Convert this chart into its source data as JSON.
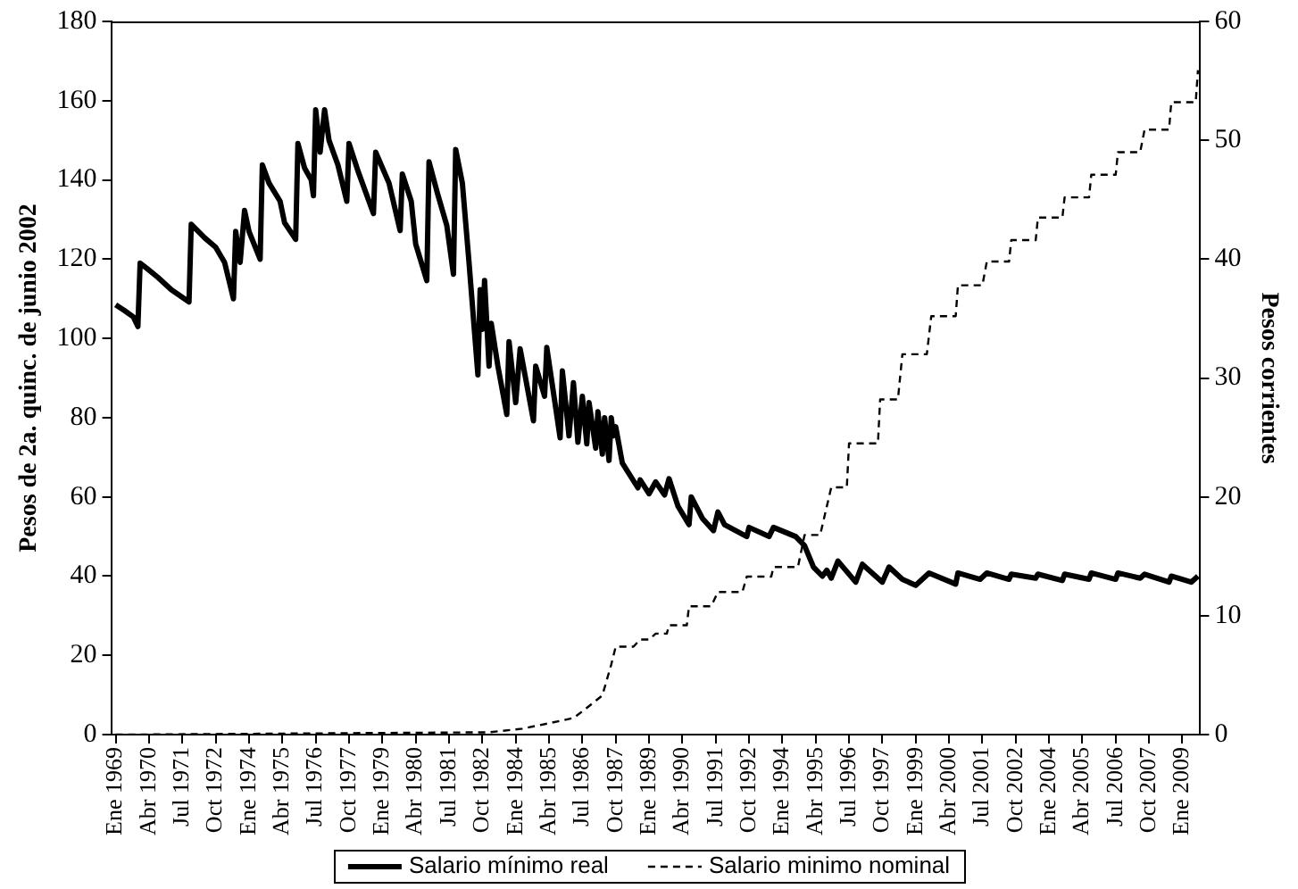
{
  "chart_data": {
    "type": "line",
    "ylabel": "Pesos de 2a. quinc. de junio 2002",
    "y2label": "Pesos corrientes",
    "legend": "bottom",
    "grid": false,
    "marker": "none",
    "xlim": [
      "1968-11",
      "2009-09"
    ],
    "xticks": [
      {
        "value": "1969-01",
        "label": "Ene 1969"
      },
      {
        "value": "1970-04",
        "label": "Abr 1970"
      },
      {
        "value": "1971-07",
        "label": "Jul 1971"
      },
      {
        "value": "1972-10",
        "label": "Oct 1972"
      },
      {
        "value": "1974-01",
        "label": "Ene 1974"
      },
      {
        "value": "1975-04",
        "label": "Abr 1975"
      },
      {
        "value": "1976-07",
        "label": "Jul 1976"
      },
      {
        "value": "1977-10",
        "label": "Oct 1977"
      },
      {
        "value": "1979-01",
        "label": "Ene 1979"
      },
      {
        "value": "1980-04",
        "label": "Abr 1980"
      },
      {
        "value": "1981-07",
        "label": "Jul 1981"
      },
      {
        "value": "1982-10",
        "label": "Oct 1982"
      },
      {
        "value": "1984-01",
        "label": "Ene 1984"
      },
      {
        "value": "1985-04",
        "label": "Abr 1985"
      },
      {
        "value": "1986-07",
        "label": "Jul 1986"
      },
      {
        "value": "1987-10",
        "label": "Oct 1987"
      },
      {
        "value": "1989-01",
        "label": "Ene 1989"
      },
      {
        "value": "1990-04",
        "label": "Abr 1990"
      },
      {
        "value": "1991-07",
        "label": "Jul 1991"
      },
      {
        "value": "1992-10",
        "label": "Oct 1992"
      },
      {
        "value": "1994-01",
        "label": "Ene 1994"
      },
      {
        "value": "1995-04",
        "label": "Abr 1995"
      },
      {
        "value": "1996-07",
        "label": "Jul 1996"
      },
      {
        "value": "1997-10",
        "label": "Oct 1997"
      },
      {
        "value": "1999-01",
        "label": "Ene 1999"
      },
      {
        "value": "2000-04",
        "label": "Abr 2000"
      },
      {
        "value": "2001-07",
        "label": "Jul 2001"
      },
      {
        "value": "2002-10",
        "label": "Oct 2002"
      },
      {
        "value": "2004-01",
        "label": "Ene 2004"
      },
      {
        "value": "2005-04",
        "label": "Abr 2005"
      },
      {
        "value": "2006-07",
        "label": "Jul 2006"
      },
      {
        "value": "2007-10",
        "label": "Oct 2007"
      },
      {
        "value": "2009-01",
        "label": "Ene 2009"
      }
    ],
    "ylim": [
      0,
      180
    ],
    "yticks": [
      0,
      20,
      40,
      60,
      80,
      100,
      120,
      140,
      160,
      180
    ],
    "y2lim": [
      0,
      60
    ],
    "y2ticks": [
      0,
      10,
      20,
      30,
      40,
      50,
      60
    ],
    "series": [
      {
        "name": "Salario mínimo real",
        "color": "#000000",
        "line_style": "solid",
        "x": [
          "1969-01",
          "1969-05",
          "1969-09",
          "1969-11",
          "1969-12",
          "1970-03",
          "1970-08",
          "1971-02",
          "1971-10",
          "1971-11",
          "1972-05",
          "1972-10",
          "1973-02",
          "1973-06",
          "1973-07",
          "1973-09",
          "1973-11",
          "1974-01",
          "1974-06",
          "1974-07",
          "1974-10",
          "1975-03",
          "1975-05",
          "1975-10",
          "1975-11",
          "1976-02",
          "1976-05",
          "1976-06",
          "1976-07",
          "1976-09",
          "1976-11",
          "1977-01",
          "1977-05",
          "1977-09",
          "1977-10",
          "1978-02",
          "1978-09",
          "1978-10",
          "1979-04",
          "1979-09",
          "1979-10",
          "1980-02",
          "1980-04",
          "1980-09",
          "1980-10",
          "1981-02",
          "1981-06",
          "1981-09",
          "1981-10",
          "1982-01",
          "1982-04",
          "1982-08",
          "1982-09",
          "1982-10",
          "1982-11",
          "1983-01",
          "1983-02",
          "1983-05",
          "1983-09",
          "1983-10",
          "1984-01",
          "1984-03",
          "1984-09",
          "1984-10",
          "1985-02",
          "1985-03",
          "1985-09",
          "1985-10",
          "1986-01",
          "1986-03",
          "1986-05",
          "1986-07",
          "1986-09",
          "1986-10",
          "1987-01",
          "1987-02",
          "1987-04",
          "1987-05",
          "1987-07",
          "1987-08",
          "1987-09",
          "1987-10",
          "1988-01",
          "1988-08",
          "1988-09",
          "1989-01",
          "1989-04",
          "1989-08",
          "1989-10",
          "1990-02",
          "1990-07",
          "1990-08",
          "1991-01",
          "1991-06",
          "1991-08",
          "1991-11",
          "1992-09",
          "1992-10",
          "1993-07",
          "1993-09",
          "1994-07",
          "1994-11",
          "1995-03",
          "1995-07",
          "1995-09",
          "1995-11",
          "1996-02",
          "1996-10",
          "1997-01",
          "1997-10",
          "1998-01",
          "1998-07",
          "1999-01",
          "1999-07",
          "2000-07",
          "2000-08",
          "2001-06",
          "2001-09",
          "2002-07",
          "2002-08",
          "2003-07",
          "2003-08",
          "2004-07",
          "2004-08",
          "2005-07",
          "2005-08",
          "2006-07",
          "2006-08",
          "2007-06",
          "2007-08",
          "2008-07",
          "2008-08",
          "2009-05",
          "2009-08"
        ],
        "values": [
          108.5,
          107,
          105.4,
          103,
          119,
          117.7,
          115.4,
          112.3,
          109.2,
          128.8,
          125.4,
          123,
          119.2,
          110,
          127,
          119.2,
          132.3,
          127,
          120,
          143.8,
          139.2,
          134.6,
          129.2,
          125,
          149.2,
          143,
          140,
          136,
          157.7,
          147,
          157.7,
          150,
          143.8,
          134.6,
          149.2,
          142.3,
          131.5,
          147,
          139.2,
          127.2,
          141.5,
          134.6,
          123.8,
          114.6,
          144.6,
          136.2,
          128.5,
          116.2,
          147.7,
          139.2,
          119.2,
          90.8,
          112.3,
          102.3,
          114.6,
          93,
          103.8,
          93,
          80.8,
          99.2,
          83.8,
          97.4,
          79.2,
          93,
          85.4,
          97.7,
          74.9,
          91.8,
          75.4,
          88.8,
          73.8,
          85.4,
          73.4,
          83.8,
          72.3,
          81.5,
          70.8,
          80,
          69.2,
          80,
          75.4,
          77.7,
          68.5,
          62.3,
          64.3,
          60.8,
          63.8,
          60.5,
          64.6,
          57.7,
          53,
          60,
          54.6,
          51.5,
          56.2,
          53,
          50,
          52.3,
          50,
          52.3,
          50,
          47.7,
          42.3,
          40,
          41.5,
          39.5,
          43.8,
          38.5,
          43,
          38.5,
          42.3,
          39.2,
          37.7,
          40.8,
          38,
          40.8,
          39.2,
          40.8,
          39.2,
          40.5,
          39.5,
          40.5,
          38.9,
          40.5,
          39.2,
          40.8,
          39.2,
          40.8,
          39.5,
          40.5,
          38.5,
          40,
          38.5,
          40
        ]
      },
      {
        "name": "Salario minimo nominal",
        "color": "#000000",
        "line_style": "dashed",
        "axis": "y2",
        "x": [
          "1969-01",
          "1983-01",
          "1984-04",
          "1985-05",
          "1986-03",
          "1986-08",
          "1987-04",
          "1987-08",
          "1987-10",
          "1988-06",
          "1988-09",
          "1989-01",
          "1989-04",
          "1989-09",
          "1989-10",
          "1990-06",
          "1990-07",
          "1991-05",
          "1991-08",
          "1992-07",
          "1992-09",
          "1993-08",
          "1993-09",
          "1994-08",
          "1994-11",
          "1995-06",
          "1995-11",
          "1996-06",
          "1996-07",
          "1997-08",
          "1997-09",
          "1998-05",
          "1998-07",
          "1999-06",
          "1999-08",
          "2000-07",
          "2000-08",
          "2001-07",
          "2001-09",
          "2002-07",
          "2002-08",
          "2003-07",
          "2003-08",
          "2004-07",
          "2004-08",
          "2005-07",
          "2005-08",
          "2006-07",
          "2006-08",
          "2007-06",
          "2007-08",
          "2008-07",
          "2008-08",
          "2009-07",
          "2009-08"
        ],
        "values": [
          0,
          0.2,
          0.5,
          1,
          1.4,
          2.1,
          3.3,
          5.9,
          7.4,
          7.4,
          8,
          8,
          8.5,
          8.5,
          9.2,
          9.2,
          10.8,
          10.8,
          12,
          12,
          13.3,
          13.3,
          14.1,
          14.1,
          16.8,
          16.8,
          20.8,
          20.8,
          24.5,
          24.5,
          28.2,
          28.2,
          32,
          32,
          35.2,
          35.2,
          37.8,
          37.8,
          39.8,
          39.8,
          41.6,
          41.6,
          43.5,
          43.5,
          45.2,
          45.2,
          47.1,
          47.1,
          49,
          49,
          50.9,
          50.9,
          53.2,
          53.2,
          55.9
        ]
      }
    ]
  }
}
